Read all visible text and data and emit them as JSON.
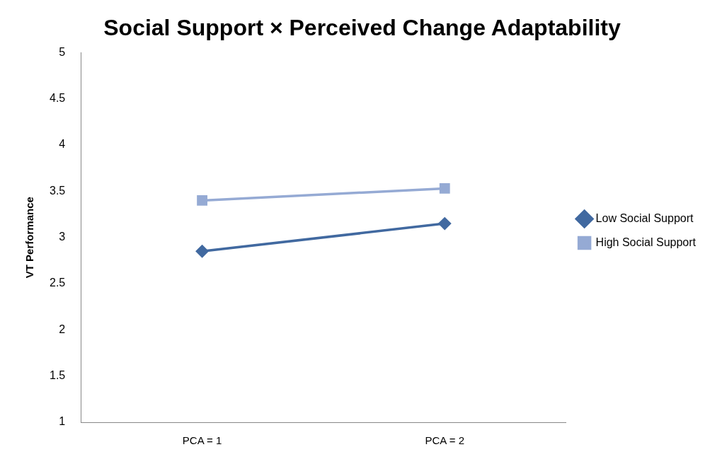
{
  "chart_data": {
    "type": "line",
    "title": "Social Support × Perceived Change Adaptability",
    "ylabel": "VT Performance",
    "categories": [
      "PCA = 1",
      "PCA = 2"
    ],
    "series": [
      {
        "name": "Low Social Support",
        "color": "#4169a0",
        "values": [
          2.85,
          3.15
        ],
        "marker": "diamond"
      },
      {
        "name": "High Social Support",
        "color": "#95aad4",
        "values": [
          3.4,
          3.53
        ],
        "marker": "square"
      }
    ],
    "ylim": [
      1,
      5
    ],
    "yticks": [
      1,
      1.5,
      2,
      2.5,
      3,
      3.5,
      4,
      4.5,
      5
    ],
    "grid": false,
    "legend": "right",
    "line_style": "solid"
  }
}
